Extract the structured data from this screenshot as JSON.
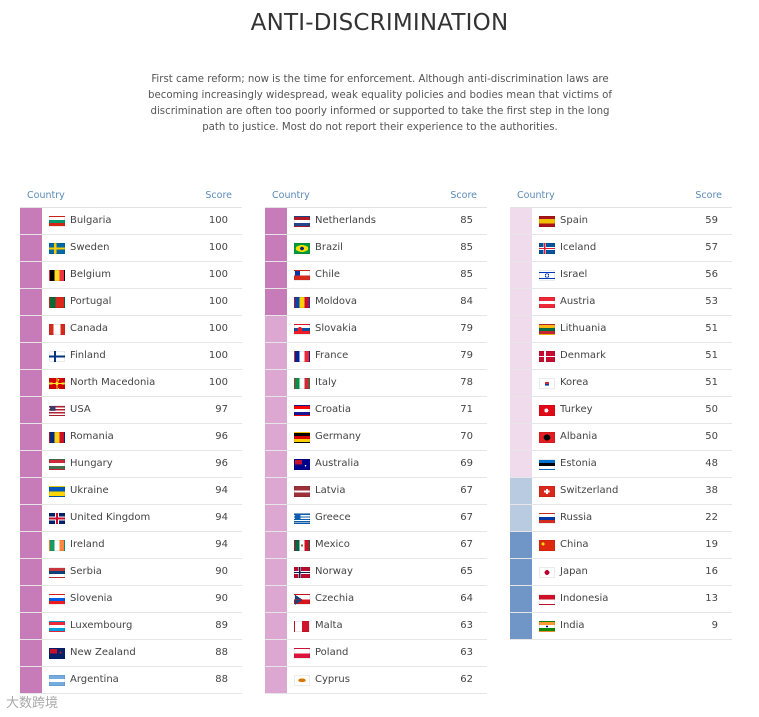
{
  "title": "ANTI-DISCRIMINATION",
  "intro": "First came reform; now is the time for enforcement. Although anti-discrimination laws are becoming increasingly widespread, weak equality policies and bodies mean that victims of discrimination are often too poorly informed or supported to take the first step in the long path to justice. Most do not report their experience to the authorities.",
  "table_header": {
    "country": "Country",
    "score": "Score"
  },
  "watermark": "大数跨境",
  "colors": {
    "tier_top": "#c77bb9",
    "tier_mid": "#dca7d0",
    "tier_low": "#f0dbec",
    "tier_lower": "#b9cbe0",
    "tier_lowest": "#7096c8",
    "header_text": "#5b8bb8"
  },
  "columns": [
    [
      {
        "country": "Bulgaria",
        "score": "100",
        "tier": "tier_top",
        "flag": "bulgaria-flag-icon"
      },
      {
        "country": "Sweden",
        "score": "100",
        "tier": "tier_top",
        "flag": "sweden-flag-icon"
      },
      {
        "country": "Belgium",
        "score": "100",
        "tier": "tier_top",
        "flag": "belgium-flag-icon"
      },
      {
        "country": "Portugal",
        "score": "100",
        "tier": "tier_top",
        "flag": "portugal-flag-icon"
      },
      {
        "country": "Canada",
        "score": "100",
        "tier": "tier_top",
        "flag": "canada-flag-icon"
      },
      {
        "country": "Finland",
        "score": "100",
        "tier": "tier_top",
        "flag": "finland-flag-icon"
      },
      {
        "country": "North Macedonia",
        "score": "100",
        "tier": "tier_top",
        "flag": "north-macedonia-flag-icon"
      },
      {
        "country": "USA",
        "score": "97",
        "tier": "tier_top",
        "flag": "usa-flag-icon"
      },
      {
        "country": "Romania",
        "score": "96",
        "tier": "tier_top",
        "flag": "romania-flag-icon"
      },
      {
        "country": "Hungary",
        "score": "96",
        "tier": "tier_top",
        "flag": "hungary-flag-icon"
      },
      {
        "country": "Ukraine",
        "score": "94",
        "tier": "tier_top",
        "flag": "ukraine-flag-icon"
      },
      {
        "country": "United Kingdom",
        "score": "94",
        "tier": "tier_top",
        "flag": "uk-flag-icon"
      },
      {
        "country": "Ireland",
        "score": "94",
        "tier": "tier_top",
        "flag": "ireland-flag-icon"
      },
      {
        "country": "Serbia",
        "score": "90",
        "tier": "tier_top",
        "flag": "serbia-flag-icon"
      },
      {
        "country": "Slovenia",
        "score": "90",
        "tier": "tier_top",
        "flag": "slovenia-flag-icon"
      },
      {
        "country": "Luxembourg",
        "score": "89",
        "tier": "tier_top",
        "flag": "luxembourg-flag-icon"
      },
      {
        "country": "New Zealand",
        "score": "88",
        "tier": "tier_top",
        "flag": "new-zealand-flag-icon"
      },
      {
        "country": "Argentina",
        "score": "88",
        "tier": "tier_top",
        "flag": "argentina-flag-icon"
      }
    ],
    [
      {
        "country": "Netherlands",
        "score": "85",
        "tier": "tier_top",
        "flag": "netherlands-flag-icon"
      },
      {
        "country": "Brazil",
        "score": "85",
        "tier": "tier_top",
        "flag": "brazil-flag-icon"
      },
      {
        "country": "Chile",
        "score": "85",
        "tier": "tier_top",
        "flag": "chile-flag-icon"
      },
      {
        "country": "Moldova",
        "score": "84",
        "tier": "tier_top",
        "flag": "moldova-flag-icon"
      },
      {
        "country": "Slovakia",
        "score": "79",
        "tier": "tier_mid",
        "flag": "slovakia-flag-icon"
      },
      {
        "country": "France",
        "score": "79",
        "tier": "tier_mid",
        "flag": "france-flag-icon"
      },
      {
        "country": "Italy",
        "score": "78",
        "tier": "tier_mid",
        "flag": "italy-flag-icon"
      },
      {
        "country": "Croatia",
        "score": "71",
        "tier": "tier_mid",
        "flag": "croatia-flag-icon"
      },
      {
        "country": "Germany",
        "score": "70",
        "tier": "tier_mid",
        "flag": "germany-flag-icon"
      },
      {
        "country": "Australia",
        "score": "69",
        "tier": "tier_mid",
        "flag": "australia-flag-icon"
      },
      {
        "country": "Latvia",
        "score": "67",
        "tier": "tier_mid",
        "flag": "latvia-flag-icon"
      },
      {
        "country": "Greece",
        "score": "67",
        "tier": "tier_mid",
        "flag": "greece-flag-icon"
      },
      {
        "country": "Mexico",
        "score": "67",
        "tier": "tier_mid",
        "flag": "mexico-flag-icon"
      },
      {
        "country": "Norway",
        "score": "65",
        "tier": "tier_mid",
        "flag": "norway-flag-icon"
      },
      {
        "country": "Czechia",
        "score": "64",
        "tier": "tier_mid",
        "flag": "czechia-flag-icon"
      },
      {
        "country": "Malta",
        "score": "63",
        "tier": "tier_mid",
        "flag": "malta-flag-icon"
      },
      {
        "country": "Poland",
        "score": "63",
        "tier": "tier_mid",
        "flag": "poland-flag-icon"
      },
      {
        "country": "Cyprus",
        "score": "62",
        "tier": "tier_mid",
        "flag": "cyprus-flag-icon"
      }
    ],
    [
      {
        "country": "Spain",
        "score": "59",
        "tier": "tier_low",
        "flag": "spain-flag-icon"
      },
      {
        "country": "Iceland",
        "score": "57",
        "tier": "tier_low",
        "flag": "iceland-flag-icon"
      },
      {
        "country": "Israel",
        "score": "56",
        "tier": "tier_low",
        "flag": "israel-flag-icon"
      },
      {
        "country": "Austria",
        "score": "53",
        "tier": "tier_low",
        "flag": "austria-flag-icon"
      },
      {
        "country": "Lithuania",
        "score": "51",
        "tier": "tier_low",
        "flag": "lithuania-flag-icon"
      },
      {
        "country": "Denmark",
        "score": "51",
        "tier": "tier_low",
        "flag": "denmark-flag-icon"
      },
      {
        "country": "Korea",
        "score": "51",
        "tier": "tier_low",
        "flag": "korea-flag-icon"
      },
      {
        "country": "Turkey",
        "score": "50",
        "tier": "tier_low",
        "flag": "turkey-flag-icon"
      },
      {
        "country": "Albania",
        "score": "50",
        "tier": "tier_low",
        "flag": "albania-flag-icon"
      },
      {
        "country": "Estonia",
        "score": "48",
        "tier": "tier_low",
        "flag": "estonia-flag-icon"
      },
      {
        "country": "Switzerland",
        "score": "38",
        "tier": "tier_lower",
        "flag": "switzerland-flag-icon"
      },
      {
        "country": "Russia",
        "score": "22",
        "tier": "tier_lower",
        "flag": "russia-flag-icon"
      },
      {
        "country": "China",
        "score": "19",
        "tier": "tier_lowest",
        "flag": "china-flag-icon"
      },
      {
        "country": "Japan",
        "score": "16",
        "tier": "tier_lowest",
        "flag": "japan-flag-icon"
      },
      {
        "country": "Indonesia",
        "score": "13",
        "tier": "tier_lowest",
        "flag": "indonesia-flag-icon"
      },
      {
        "country": "India",
        "score": "9",
        "tier": "tier_lowest",
        "flag": "india-flag-icon"
      }
    ]
  ]
}
